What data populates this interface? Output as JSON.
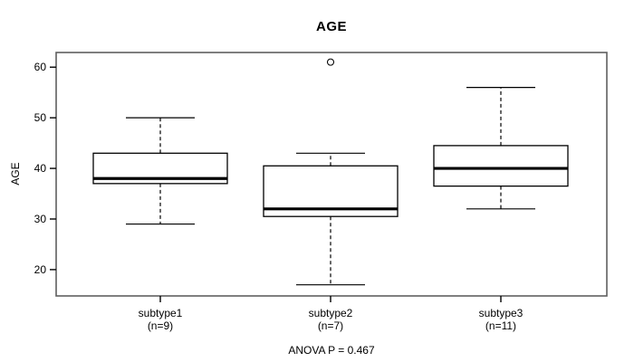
{
  "figure": {
    "title": "AGE",
    "footer": "ANOVA P = 0.467"
  },
  "chart_data": {
    "type": "boxplot",
    "title": "AGE",
    "xlabel": "",
    "ylabel": "AGE",
    "footer": "ANOVA P = 0.467",
    "ylim": [
      14.8,
      62.9
    ],
    "y_ticks": [
      20,
      30,
      40,
      50,
      60
    ],
    "grid": false,
    "categories": [
      "subtype1",
      "subtype2",
      "subtype3"
    ],
    "category_sublabels": [
      "(n=9)",
      "(n=7)",
      "(n=11)"
    ],
    "series": [
      {
        "name": "subtype1",
        "n": 9,
        "low": 29,
        "q1": 37,
        "median": 38,
        "q3": 43,
        "high": 50,
        "outliers": []
      },
      {
        "name": "subtype2",
        "n": 7,
        "low": 17,
        "q1": 30.5,
        "median": 32,
        "q3": 40.5,
        "high": 43,
        "outliers": [
          61
        ]
      },
      {
        "name": "subtype3",
        "n": 11,
        "low": 32,
        "q1": 36.5,
        "median": 40,
        "q3": 44.5,
        "high": 56,
        "outliers": []
      }
    ],
    "colors": {
      "line": "#000000",
      "frame": "#5f5f5f",
      "box_fill": "#ffffff",
      "background": "#ffffff"
    }
  }
}
